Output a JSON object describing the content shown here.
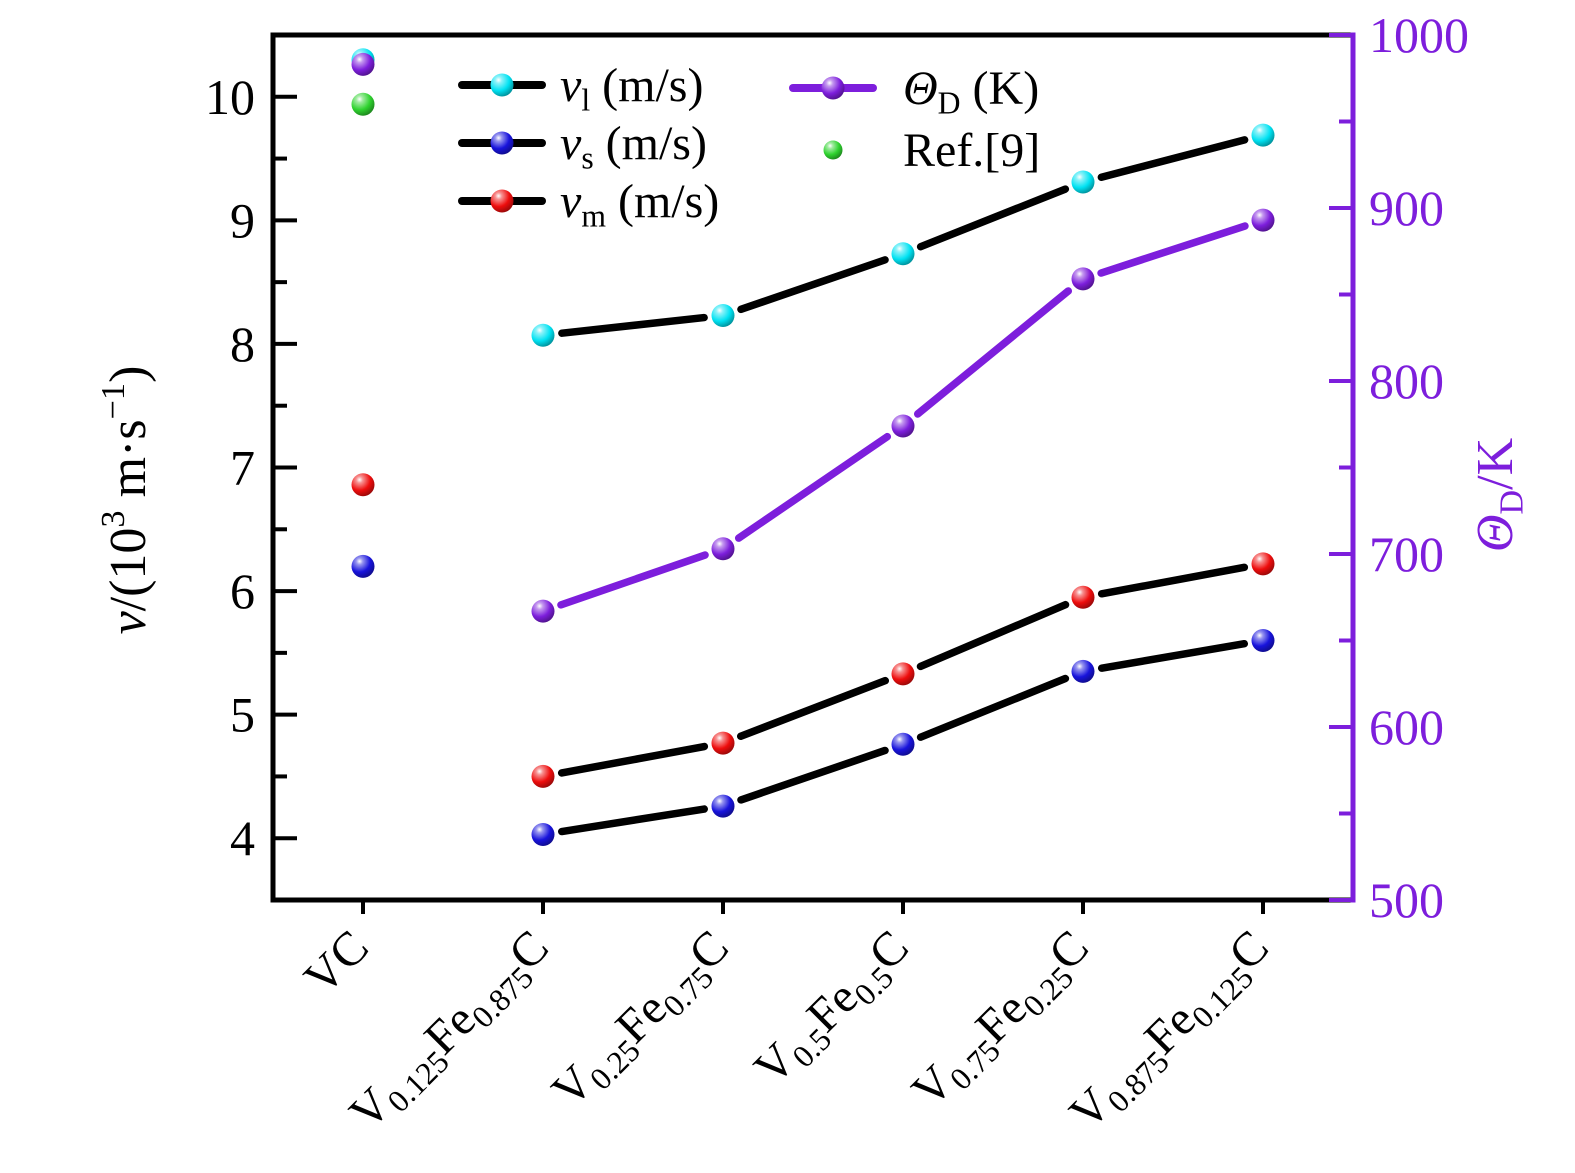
{
  "chart_data": {
    "type": "line",
    "title": "",
    "categories": [
      "VC",
      "V0.125Fe0.875C",
      "V0.25Fe0.75C",
      "V0.5Fe0.5C",
      "V0.75Fe0.25C",
      "V0.875Fe0.125C"
    ],
    "categories_rich": [
      [
        [
          "VC",
          "n"
        ]
      ],
      [
        [
          "V",
          "n"
        ],
        [
          "0.125",
          "s"
        ],
        [
          "Fe",
          "n"
        ],
        [
          "0.875",
          "s"
        ],
        [
          "C",
          "n"
        ]
      ],
      [
        [
          "V",
          "n"
        ],
        [
          "0.25",
          "s"
        ],
        [
          "Fe",
          "n"
        ],
        [
          "0.75",
          "s"
        ],
        [
          "C",
          "n"
        ]
      ],
      [
        [
          "V",
          "n"
        ],
        [
          "0.5",
          "s"
        ],
        [
          "Fe",
          "n"
        ],
        [
          "0.5",
          "s"
        ],
        [
          "C",
          "n"
        ]
      ],
      [
        [
          "V",
          "n"
        ],
        [
          "0.75",
          "s"
        ],
        [
          "Fe",
          "n"
        ],
        [
          "0.25",
          "s"
        ],
        [
          "C",
          "n"
        ]
      ],
      [
        [
          "V",
          "n"
        ],
        [
          "0.875",
          "s"
        ],
        [
          "Fe",
          "n"
        ],
        [
          "0.125",
          "s"
        ],
        [
          "C",
          "n"
        ]
      ]
    ],
    "series": [
      {
        "id": "vl",
        "label": "vl (m/s)",
        "label_rich": [
          [
            "v",
            "i"
          ],
          [
            "l",
            "s"
          ],
          [
            " (m/s)",
            "n"
          ]
        ],
        "axis": "left",
        "marker_color": "#00E2F2",
        "line_color": "#000000",
        "line": true,
        "line_start_index": 1,
        "values": [
          10.3,
          8.07,
          8.23,
          8.73,
          9.31,
          9.69
        ]
      },
      {
        "id": "vs",
        "label": "vs (m/s)",
        "label_rich": [
          [
            "v",
            "i"
          ],
          [
            "s",
            "s"
          ],
          [
            " (m/s)",
            "n"
          ]
        ],
        "axis": "left",
        "marker_color": "#1813DC",
        "line_color": "#000000",
        "line": true,
        "line_start_index": 1,
        "values": [
          6.2,
          4.03,
          4.26,
          4.76,
          5.35,
          5.6
        ]
      },
      {
        "id": "vm",
        "label": "vm (m/s)",
        "label_rich": [
          [
            "v",
            "i"
          ],
          [
            "m",
            "s"
          ],
          [
            " (m/s)",
            "n"
          ]
        ],
        "axis": "left",
        "marker_color": "#EE0D0D",
        "line_color": "#000000",
        "line": true,
        "line_start_index": 1,
        "values": [
          6.86,
          4.5,
          4.77,
          5.33,
          5.95,
          6.22
        ]
      },
      {
        "id": "thetaD",
        "label": "ΘD (K)",
        "label_rich": [
          [
            "Θ",
            "i"
          ],
          [
            "D",
            "s"
          ],
          [
            " (K)",
            "n"
          ]
        ],
        "axis": "right",
        "marker_color": "#7D1EDC",
        "line_color": "#7D1EDC",
        "line": true,
        "line_start_index": 1,
        "values": [
          983,
          667,
          703,
          774,
          859,
          893
        ]
      },
      {
        "id": "ref9",
        "label": "Ref.[9]",
        "label_rich": [
          [
            "Ref.[9]",
            "n"
          ]
        ],
        "axis": "right",
        "marker_color": "#2FD32F",
        "line_color": "none",
        "line": false,
        "line_start_index": 0,
        "values": [
          960,
          null,
          null,
          null,
          null,
          null
        ]
      }
    ],
    "left_axis": {
      "label": "v/(10³ m·s⁻¹)",
      "label_rich": [
        [
          "v",
          "i"
        ],
        [
          "/(10",
          "n"
        ],
        [
          "3",
          "S"
        ],
        [
          " m·s",
          "n"
        ],
        [
          "−1",
          "S"
        ],
        [
          ")",
          "n"
        ]
      ],
      "range": [
        3.5,
        10.5
      ],
      "major_ticks": [
        4,
        5,
        6,
        7,
        8,
        9,
        10
      ],
      "minor_ticks": [
        4.5,
        5.5,
        6.5,
        7.5,
        8.5,
        9.5
      ],
      "tick_labels": [
        "4",
        "5",
        "6",
        "7",
        "8",
        "9",
        "10"
      ],
      "color": "#000000"
    },
    "right_axis": {
      "label": "ΘD/K",
      "label_rich": [
        [
          "Θ",
          "i"
        ],
        [
          "D",
          "s"
        ],
        [
          "/K",
          "n"
        ]
      ],
      "range": [
        500,
        1000
      ],
      "major_ticks": [
        500,
        600,
        700,
        800,
        900,
        1000
      ],
      "minor_ticks": [
        550,
        650,
        750,
        850,
        950
      ],
      "tick_labels": [
        "500",
        "600",
        "700",
        "800",
        "900",
        "1000"
      ],
      "color": "#7D1EDC"
    },
    "legend": {
      "position": "top-inside",
      "column1_ids": [
        "vl",
        "vs",
        "vm"
      ],
      "column2_ids": [
        "thetaD",
        "ref9"
      ]
    },
    "grid": "off",
    "background_color": "#FFFFFF"
  }
}
